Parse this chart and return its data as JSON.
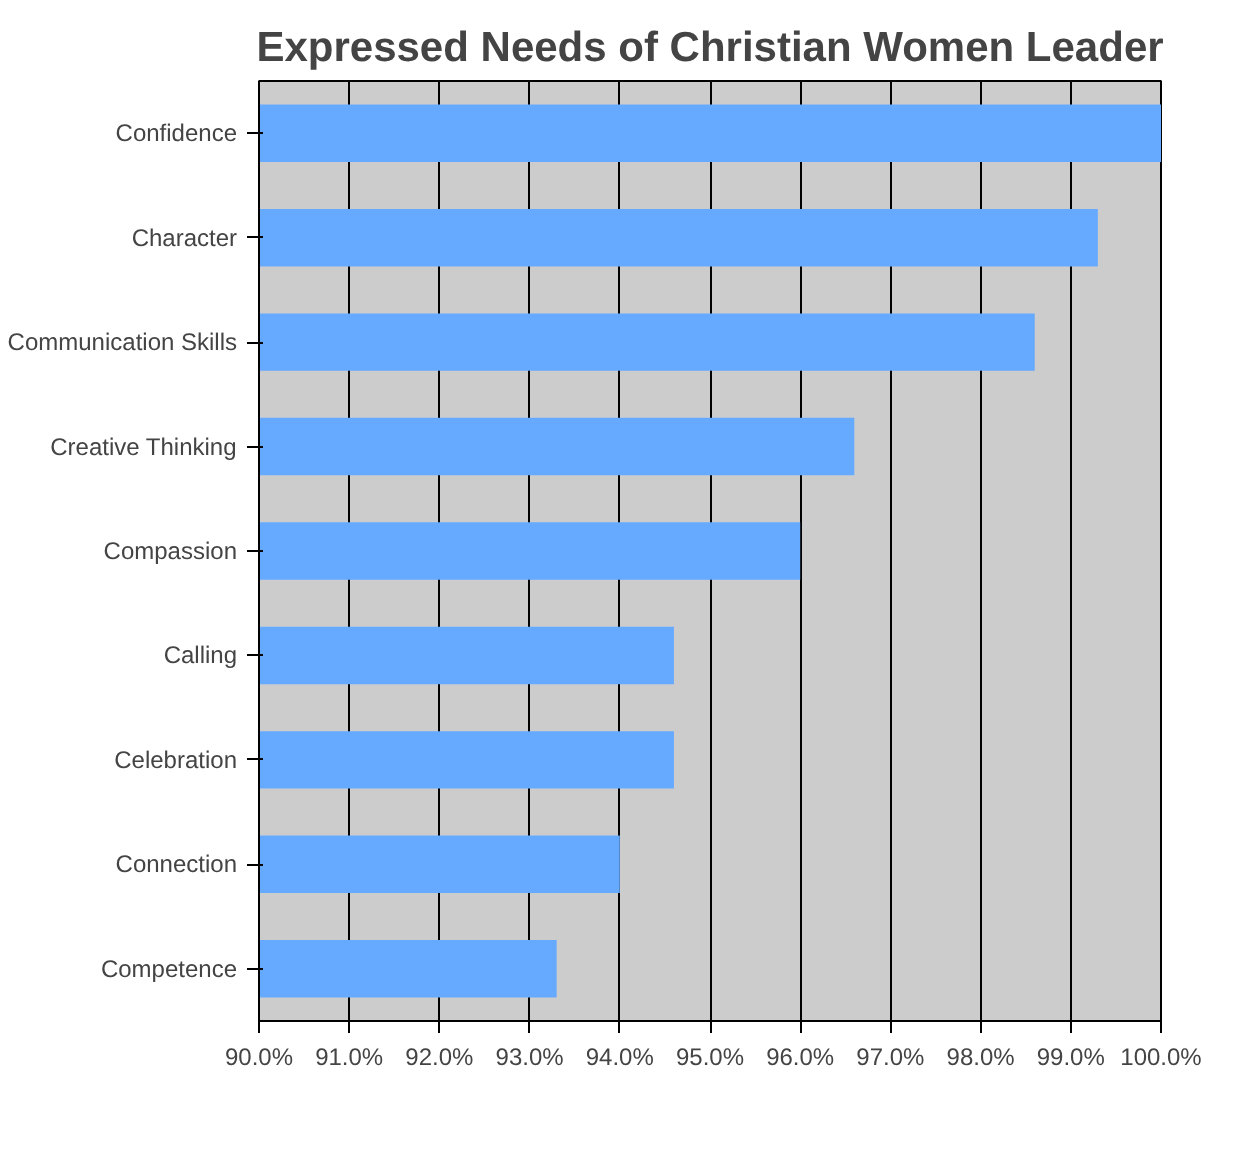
{
  "chart_data": {
    "type": "bar",
    "orientation": "horizontal",
    "title": "Expressed Needs of Christian Women Leader",
    "categories": [
      "Confidence",
      "Character",
      "Communication Skills",
      "Creative Thinking",
      "Compassion",
      "Calling",
      "Celebration",
      "Connection",
      "Competence"
    ],
    "values": [
      100.0,
      99.3,
      98.6,
      96.6,
      96.0,
      94.6,
      94.6,
      94.0,
      93.3
    ],
    "color": "#66aaff",
    "xlim": [
      90,
      100
    ],
    "xticks": [
      {
        "value": 90,
        "label": "90.0%"
      },
      {
        "value": 91,
        "label": "91.0%"
      },
      {
        "value": 92,
        "label": "92.0%"
      },
      {
        "value": 93,
        "label": "93.0%"
      },
      {
        "value": 94,
        "label": "94.0%"
      },
      {
        "value": 95,
        "label": "95.0%"
      },
      {
        "value": 96,
        "label": "96.0%"
      },
      {
        "value": 97,
        "label": "97.0%"
      },
      {
        "value": 98,
        "label": "98.0%"
      },
      {
        "value": 99,
        "label": "99.0%"
      },
      {
        "value": 100,
        "label": "100.0%"
      }
    ],
    "grid": "x"
  }
}
